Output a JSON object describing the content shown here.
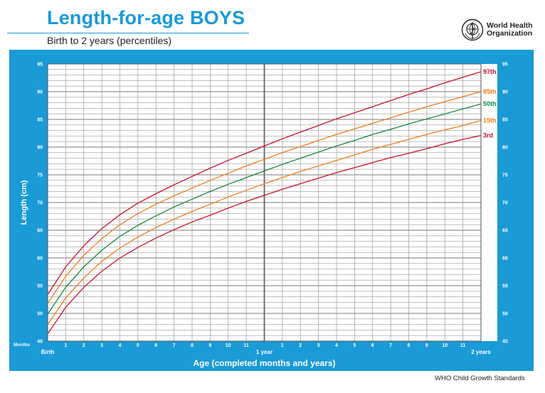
{
  "header": {
    "title": "Length-for-age BOYS",
    "subtitle": "Birth to 2 years (percentiles)",
    "org_line1": "World Health",
    "org_line2": "Organization"
  },
  "footer": "WHO Child Growth Standards",
  "colors": {
    "panel": "#1a9ad6",
    "grid": "#9a9a9a",
    "p97": "#c8102e",
    "p85": "#f07d1e",
    "p50": "#128a3c",
    "p15": "#f07d1e",
    "p3": "#c8102e"
  },
  "chart_data": {
    "type": "line",
    "title": "Length-for-age BOYS",
    "subtitle": "Birth to 2 years (percentiles)",
    "xlabel": "Age (completed months and years)",
    "ylabel": "Length (cm)",
    "xlim": [
      0,
      24
    ],
    "ylim": [
      45,
      95
    ],
    "x_unit_label": "Months",
    "x_tick_labels": [
      "Birth",
      "1",
      "2",
      "3",
      "4",
      "5",
      "6",
      "7",
      "8",
      "9",
      "10",
      "11",
      "1 year",
      "1",
      "2",
      "3",
      "4",
      "5",
      "6",
      "7",
      "8",
      "9",
      "10",
      "11",
      "2 years"
    ],
    "y_ticks": [
      45,
      50,
      55,
      60,
      65,
      70,
      75,
      80,
      85,
      90,
      95
    ],
    "grid": true,
    "x": [
      0,
      1,
      2,
      3,
      4,
      5,
      6,
      7,
      8,
      9,
      10,
      11,
      12,
      13,
      14,
      15,
      16,
      17,
      18,
      19,
      20,
      21,
      22,
      23,
      24
    ],
    "series": [
      {
        "name": "97th",
        "color": "#c8102e",
        "values": [
          53.4,
          58.4,
          62.2,
          65.3,
          67.8,
          69.9,
          71.6,
          73.2,
          74.7,
          76.2,
          77.6,
          78.9,
          80.2,
          81.5,
          82.7,
          83.9,
          85.1,
          86.2,
          87.3,
          88.4,
          89.5,
          90.5,
          91.6,
          92.6,
          93.6
        ]
      },
      {
        "name": "85th",
        "color": "#f07d1e",
        "values": [
          51.8,
          56.7,
          60.5,
          63.5,
          66.0,
          68.0,
          69.7,
          71.2,
          72.6,
          74.0,
          75.3,
          76.6,
          77.8,
          79.0,
          80.1,
          81.2,
          82.3,
          83.3,
          84.3,
          85.3,
          86.3,
          87.3,
          88.2,
          89.1,
          90.0
        ]
      },
      {
        "name": "50th",
        "color": "#128a3c",
        "values": [
          49.9,
          54.7,
          58.4,
          61.4,
          63.9,
          65.9,
          67.6,
          69.2,
          70.6,
          72.0,
          73.3,
          74.5,
          75.7,
          76.9,
          78.0,
          79.1,
          80.2,
          81.2,
          82.3,
          83.2,
          84.2,
          85.1,
          86.0,
          86.9,
          87.8
        ]
      },
      {
        "name": "15th",
        "color": "#f07d1e",
        "values": [
          48.0,
          52.8,
          56.4,
          59.4,
          61.8,
          63.8,
          65.5,
          67.0,
          68.4,
          69.7,
          71.0,
          72.2,
          73.4,
          74.5,
          75.6,
          76.6,
          77.6,
          78.6,
          79.6,
          80.5,
          81.4,
          82.3,
          83.1,
          83.9,
          84.8
        ]
      },
      {
        "name": "3rd",
        "color": "#c8102e",
        "values": [
          46.3,
          51.1,
          54.7,
          57.6,
          60.0,
          61.9,
          63.6,
          65.1,
          66.5,
          67.7,
          69.0,
          70.2,
          71.3,
          72.4,
          73.4,
          74.4,
          75.4,
          76.3,
          77.2,
          78.1,
          78.9,
          79.7,
          80.6,
          81.4,
          82.1
        ]
      }
    ]
  }
}
